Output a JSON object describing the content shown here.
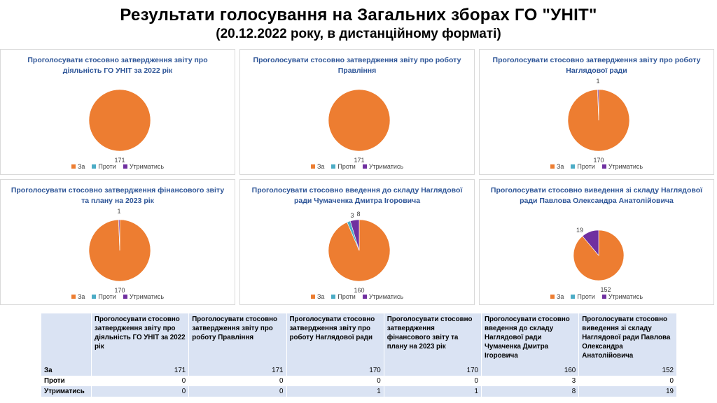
{
  "header": {
    "title": "Результати  голосування на Загальних зборах ГО \"УНІТ\"",
    "subtitle": "(20.12.2022 року, в дистанційному форматі)"
  },
  "colors": {
    "za": "#ed7d31",
    "proty": "#4bacc6",
    "utrymatys": "#7030a0"
  },
  "legend": {
    "za": "За",
    "proty": "Проти",
    "utrymatys": "Утриматись"
  },
  "chart_data": [
    {
      "type": "pie",
      "title": "Проголосувати стосовно затвердження звіту про діяльність ГО УНІТ за 2022 рік",
      "categories": [
        "За",
        "Проти",
        "Утриматись"
      ],
      "values": [
        171,
        0,
        0
      ]
    },
    {
      "type": "pie",
      "title": "Проголосувати стосовно затвердження звіту про роботу Правління",
      "categories": [
        "За",
        "Проти",
        "Утриматись"
      ],
      "values": [
        171,
        0,
        0
      ]
    },
    {
      "type": "pie",
      "title": "Проголосувати стосовно затвердження звіту про роботу Наглядової ради",
      "categories": [
        "За",
        "Проти",
        "Утриматись"
      ],
      "values": [
        170,
        0,
        1
      ]
    },
    {
      "type": "pie",
      "title": "Проголосувати стосовно затвердження фінансового звіту та плану на 2023 рік",
      "categories": [
        "За",
        "Проти",
        "Утриматись"
      ],
      "values": [
        170,
        0,
        1
      ]
    },
    {
      "type": "pie",
      "title": "Проголосувати стосовно введення до складу Наглядової ради Чумаченка Дмитра Ігоровича",
      "categories": [
        "За",
        "Проти",
        "Утриматись"
      ],
      "values": [
        160,
        3,
        8
      ]
    },
    {
      "type": "pie",
      "title": "Проголосувати стосовно виведення зі складу Наглядової ради Павлова Олександра Анатолійовича",
      "categories": [
        "За",
        "Проти",
        "Утриматись"
      ],
      "values": [
        152,
        0,
        19
      ]
    }
  ],
  "table": {
    "headers": [
      "Проголосувати стосовно затвердження звіту про діяльність ГО УНІТ за 2022 рік",
      "Проголосувати стосовно затвердження звіту про роботу Правління",
      "Проголосувати стосовно затвердження звіту про роботу Наглядової ради",
      "Проголосувати стосовно затвердження фінансового звіту та плану на 2023  рік",
      "Проголосувати стосовно введення до складу Наглядової ради Чумаченка Дмитра Ігоровича",
      "Проголосувати стосовно виведення зі складу Наглядової ради Павлова Олександра Анатолійовича"
    ],
    "rows": [
      {
        "label": "За",
        "values": [
          "171",
          "171",
          "170",
          "170",
          "160",
          "152"
        ]
      },
      {
        "label": "Проти",
        "values": [
          "0",
          "0",
          "0",
          "0",
          "3",
          "0"
        ]
      },
      {
        "label": "Утриматись",
        "values": [
          "0",
          "0",
          "1",
          "1",
          "8",
          "19"
        ]
      }
    ]
  }
}
